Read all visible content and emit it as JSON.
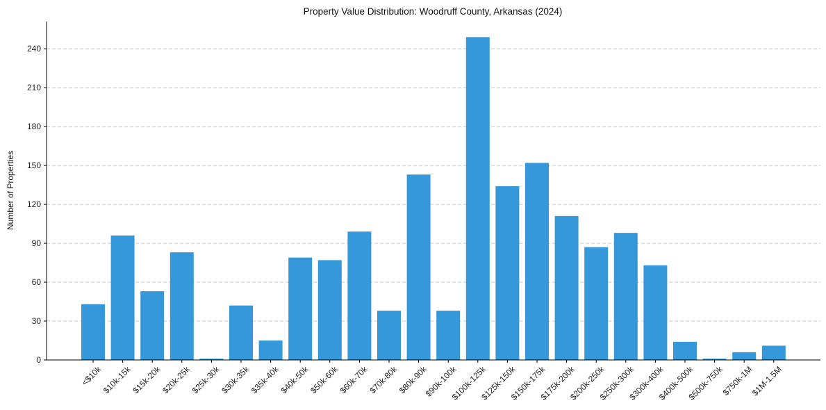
{
  "chart_data": {
    "type": "bar",
    "title": "Property Value Distribution: Woodruff County, Arkansas (2024)",
    "xlabel": "",
    "ylabel": "Number of Properties",
    "ylim": [
      0,
      261
    ],
    "yticks": [
      0,
      30,
      60,
      90,
      120,
      150,
      180,
      210,
      240
    ],
    "grid": "y-dashed",
    "bar_color": "#3498db",
    "grid_color": "#c8c8c8",
    "categories": [
      "<$10k",
      "$10k-15k",
      "$15k-20k",
      "$20k-25k",
      "$25k-30k",
      "$30k-35k",
      "$35k-40k",
      "$40k-50k",
      "$50k-60k",
      "$60k-70k",
      "$70k-80k",
      "$80k-90k",
      "$90k-100k",
      "$100k-125k",
      "$125k-150k",
      "$150k-175k",
      "$175k-200k",
      "$200k-250k",
      "$250k-300k",
      "$300k-400k",
      "$400k-500k",
      "$500k-750k",
      "$750k-1M",
      "$1M-1.5M"
    ],
    "values": [
      43,
      96,
      53,
      83,
      1,
      42,
      15,
      79,
      77,
      99,
      38,
      143,
      38,
      249,
      134,
      152,
      111,
      87,
      98,
      73,
      14,
      1,
      6,
      11
    ]
  }
}
